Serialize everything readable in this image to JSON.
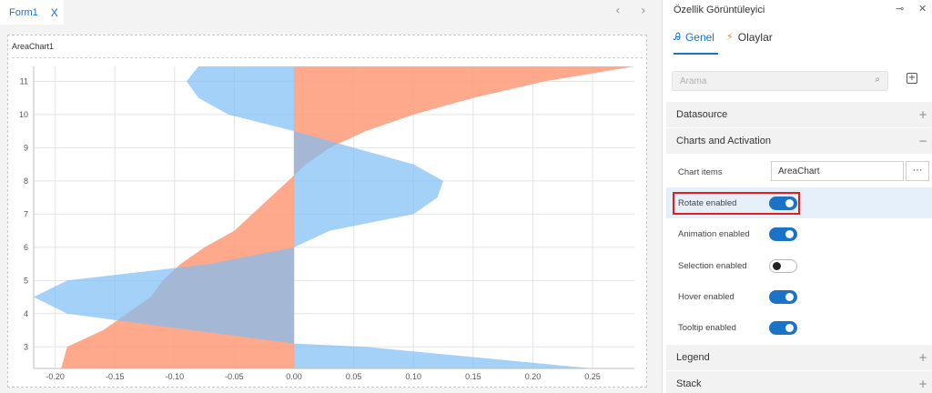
{
  "tabbar": {
    "tab_label": "Form1",
    "close_glyph": "X",
    "prev_glyph": "‹",
    "next_glyph": "›"
  },
  "chart": {
    "control_name": "AreaChart1"
  },
  "chart_data": {
    "type": "area",
    "orientation": "rotated",
    "x_ticks": [
      "-0.20",
      "-0.15",
      "-0.10",
      "-0.05",
      "0.00",
      "0.05",
      "0.10",
      "0.15",
      "0.20",
      "0.25"
    ],
    "y_ticks": [
      "3",
      "4",
      "5",
      "6",
      "7",
      "8",
      "9",
      "10",
      "11"
    ],
    "xlim": [
      -0.218,
      0.285
    ],
    "ylim": [
      2.35,
      11.45
    ],
    "grid": true,
    "series": [
      {
        "color": "#fe9a78",
        "points": [
          [
            2.35,
            -0.195
          ],
          [
            3.0,
            -0.19
          ],
          [
            3.5,
            -0.16
          ],
          [
            4.0,
            -0.14
          ],
          [
            4.5,
            -0.12
          ],
          [
            5.0,
            -0.11
          ],
          [
            5.5,
            -0.095
          ],
          [
            6.0,
            -0.075
          ],
          [
            6.5,
            -0.05
          ],
          [
            7.0,
            -0.035
          ],
          [
            7.5,
            -0.02
          ],
          [
            8.0,
            -0.005
          ],
          [
            8.5,
            0.01
          ],
          [
            9.0,
            0.03
          ],
          [
            9.5,
            0.06
          ],
          [
            10.0,
            0.1
          ],
          [
            10.5,
            0.15
          ],
          [
            11.0,
            0.21
          ],
          [
            11.45,
            0.285
          ]
        ]
      },
      {
        "color": "#7ebdf4",
        "points": [
          [
            2.35,
            0.25
          ],
          [
            3.0,
            0.06
          ],
          [
            3.1,
            0.0
          ],
          [
            4.0,
            -0.19
          ],
          [
            4.5,
            -0.218
          ],
          [
            5.0,
            -0.19
          ],
          [
            5.5,
            -0.07
          ],
          [
            6.0,
            0.0
          ],
          [
            6.5,
            0.03
          ],
          [
            7.0,
            0.1
          ],
          [
            7.5,
            0.12
          ],
          [
            8.0,
            0.125
          ],
          [
            8.5,
            0.1
          ],
          [
            9.0,
            0.05
          ],
          [
            9.5,
            0.0
          ],
          [
            10.0,
            -0.055
          ],
          [
            10.5,
            -0.08
          ],
          [
            11.0,
            -0.09
          ],
          [
            11.45,
            -0.08
          ]
        ]
      }
    ]
  },
  "props": {
    "title": "Özellik Görüntüleyici",
    "tabs": {
      "general": "Genel",
      "events": "Olaylar"
    },
    "search_placeholder": "Arama",
    "categories": {
      "datasource": "Datasource",
      "charts_activation": "Charts and Activation",
      "legend": "Legend",
      "stack": "Stack"
    },
    "expand_sign": "+",
    "collapse_sign": "−",
    "rows": {
      "chart_items_label": "Chart items",
      "chart_items_value": "AreaChart",
      "chart_items_more": "···",
      "rotate": "Rotate enabled",
      "animation": "Animation enabled",
      "selection": "Selection enabled",
      "hover": "Hover enabled",
      "tooltip": "Tooltip enabled"
    },
    "toggles": {
      "rotate": true,
      "animation": true,
      "selection": false,
      "hover": true,
      "tooltip": true
    }
  }
}
